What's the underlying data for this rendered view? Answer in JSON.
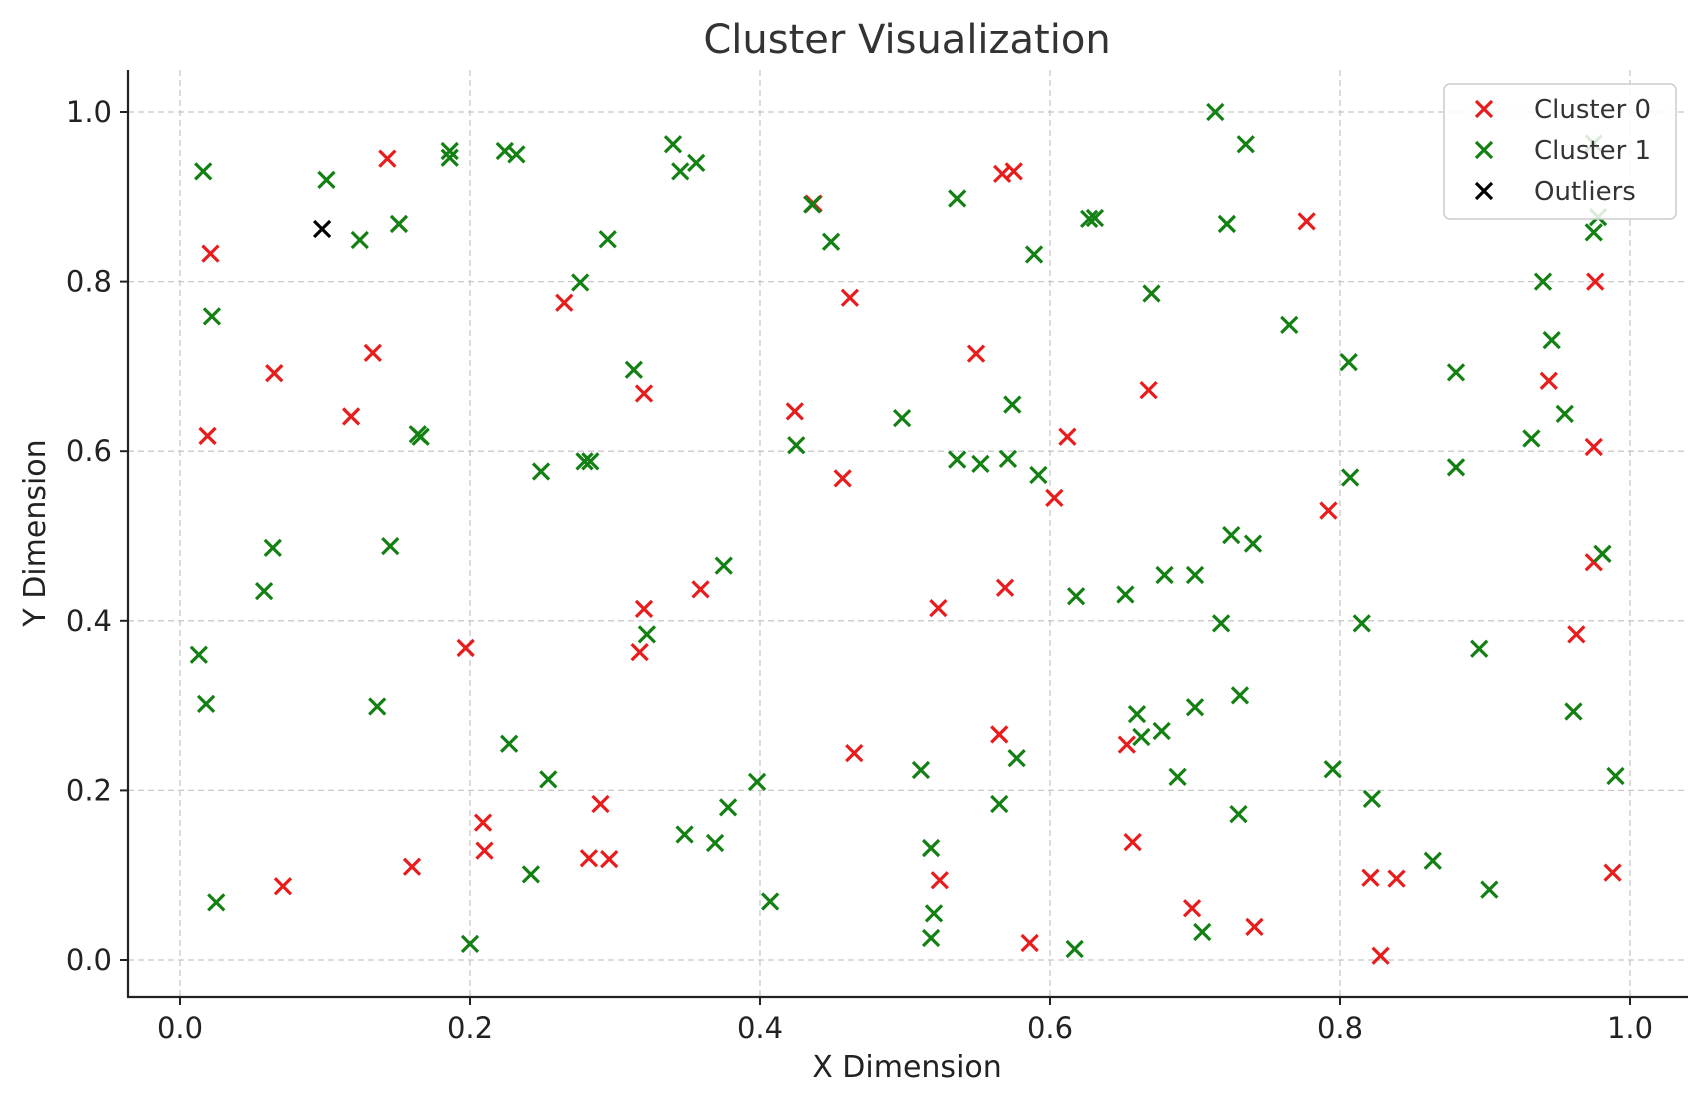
{
  "chart_data": {
    "type": "scatter",
    "title": "Cluster Visualization",
    "xlabel": "X Dimension",
    "ylabel": "Y Dimension",
    "xlim": [
      -0.035,
      1.035
    ],
    "ylim": [
      -0.045,
      1.05
    ],
    "xticks": [
      "0.0",
      "0.2",
      "0.4",
      "0.6",
      "0.8",
      "1.0"
    ],
    "yticks": [
      "0.0",
      "0.2",
      "0.4",
      "0.6",
      "0.8",
      "1.0"
    ],
    "grid": true,
    "legend_position": "top-right",
    "marker": "x",
    "series": [
      {
        "name": "Cluster 0",
        "color": "#e81c1c",
        "points": [
          [
            0.143,
            0.945
          ],
          [
            0.021,
            0.833
          ],
          [
            0.065,
            0.692
          ],
          [
            0.133,
            0.716
          ],
          [
            0.118,
            0.641
          ],
          [
            0.019,
            0.618
          ],
          [
            0.265,
            0.775
          ],
          [
            0.32,
            0.668
          ],
          [
            0.197,
            0.368
          ],
          [
            0.32,
            0.414
          ],
          [
            0.317,
            0.363
          ],
          [
            0.359,
            0.437
          ],
          [
            0.209,
            0.162
          ],
          [
            0.21,
            0.129
          ],
          [
            0.29,
            0.184
          ],
          [
            0.282,
            0.12
          ],
          [
            0.296,
            0.119
          ],
          [
            0.16,
            0.11
          ],
          [
            0.071,
            0.087
          ],
          [
            0.437,
            0.892
          ],
          [
            0.462,
            0.781
          ],
          [
            0.424,
            0.647
          ],
          [
            0.457,
            0.568
          ],
          [
            0.465,
            0.244
          ],
          [
            0.567,
            0.927
          ],
          [
            0.575,
            0.93
          ],
          [
            0.549,
            0.715
          ],
          [
            0.523,
            0.415
          ],
          [
            0.569,
            0.439
          ],
          [
            0.565,
            0.266
          ],
          [
            0.524,
            0.094
          ],
          [
            0.586,
            0.02
          ],
          [
            0.612,
            0.617
          ],
          [
            0.603,
            0.545
          ],
          [
            0.668,
            0.672
          ],
          [
            0.653,
            0.254
          ],
          [
            0.657,
            0.139
          ],
          [
            0.698,
            0.061
          ],
          [
            0.741,
            0.039
          ],
          [
            0.777,
            0.871
          ],
          [
            0.792,
            0.53
          ],
          [
            0.821,
            0.097
          ],
          [
            0.839,
            0.096
          ],
          [
            0.828,
            0.005
          ],
          [
            0.976,
            0.8
          ],
          [
            0.944,
            0.683
          ],
          [
            0.975,
            0.605
          ],
          [
            0.975,
            0.469
          ],
          [
            0.963,
            0.384
          ],
          [
            0.988,
            0.103
          ]
        ]
      },
      {
        "name": "Cluster 1",
        "color": "#128012",
        "points": [
          [
            0.016,
            0.93
          ],
          [
            0.101,
            0.92
          ],
          [
            0.186,
            0.954
          ],
          [
            0.186,
            0.946
          ],
          [
            0.224,
            0.954
          ],
          [
            0.232,
            0.95
          ],
          [
            0.124,
            0.849
          ],
          [
            0.151,
            0.868
          ],
          [
            0.022,
            0.759
          ],
          [
            0.164,
            0.62
          ],
          [
            0.166,
            0.617
          ],
          [
            0.064,
            0.486
          ],
          [
            0.145,
            0.488
          ],
          [
            0.058,
            0.435
          ],
          [
            0.013,
            0.36
          ],
          [
            0.018,
            0.302
          ],
          [
            0.136,
            0.299
          ],
          [
            0.025,
            0.068
          ],
          [
            0.34,
            0.962
          ],
          [
            0.345,
            0.93
          ],
          [
            0.356,
            0.94
          ],
          [
            0.295,
            0.85
          ],
          [
            0.276,
            0.799
          ],
          [
            0.313,
            0.696
          ],
          [
            0.249,
            0.576
          ],
          [
            0.279,
            0.588
          ],
          [
            0.283,
            0.588
          ],
          [
            0.375,
            0.465
          ],
          [
            0.322,
            0.384
          ],
          [
            0.227,
            0.255
          ],
          [
            0.254,
            0.213
          ],
          [
            0.378,
            0.18
          ],
          [
            0.348,
            0.148
          ],
          [
            0.369,
            0.138
          ],
          [
            0.242,
            0.101
          ],
          [
            0.2,
            0.019
          ],
          [
            0.398,
            0.21
          ],
          [
            0.407,
            0.069
          ],
          [
            0.714,
            1.0
          ],
          [
            0.735,
            0.962
          ],
          [
            0.536,
            0.898
          ],
          [
            0.627,
            0.874
          ],
          [
            0.631,
            0.875
          ],
          [
            0.722,
            0.868
          ],
          [
            0.589,
            0.832
          ],
          [
            0.449,
            0.847
          ],
          [
            0.436,
            0.891
          ],
          [
            0.67,
            0.786
          ],
          [
            0.498,
            0.639
          ],
          [
            0.574,
            0.655
          ],
          [
            0.425,
            0.607
          ],
          [
            0.536,
            0.59
          ],
          [
            0.552,
            0.585
          ],
          [
            0.571,
            0.591
          ],
          [
            0.592,
            0.572
          ],
          [
            0.618,
            0.429
          ],
          [
            0.652,
            0.431
          ],
          [
            0.679,
            0.454
          ],
          [
            0.7,
            0.454
          ],
          [
            0.725,
            0.501
          ],
          [
            0.74,
            0.491
          ],
          [
            0.718,
            0.397
          ],
          [
            0.66,
            0.29
          ],
          [
            0.663,
            0.263
          ],
          [
            0.677,
            0.27
          ],
          [
            0.7,
            0.298
          ],
          [
            0.731,
            0.312
          ],
          [
            0.688,
            0.216
          ],
          [
            0.511,
            0.224
          ],
          [
            0.577,
            0.238
          ],
          [
            0.565,
            0.184
          ],
          [
            0.73,
            0.172
          ],
          [
            0.518,
            0.132
          ],
          [
            0.52,
            0.055
          ],
          [
            0.518,
            0.026
          ],
          [
            0.617,
            0.013
          ],
          [
            0.705,
            0.033
          ],
          [
            0.765,
            0.749
          ],
          [
            0.806,
            0.705
          ],
          [
            0.807,
            0.569
          ],
          [
            0.815,
            0.397
          ],
          [
            0.88,
            0.693
          ],
          [
            0.88,
            0.581
          ],
          [
            0.896,
            0.367
          ],
          [
            0.94,
            0.8
          ],
          [
            0.946,
            0.731
          ],
          [
            0.932,
            0.615
          ],
          [
            0.955,
            0.644
          ],
          [
            0.961,
            0.293
          ],
          [
            0.975,
            0.858
          ],
          [
            0.978,
            0.876
          ],
          [
            0.975,
            0.963
          ],
          [
            0.981,
            0.479
          ],
          [
            0.99,
            0.217
          ],
          [
            0.795,
            0.225
          ],
          [
            0.822,
            0.19
          ],
          [
            0.864,
            0.117
          ],
          [
            0.903,
            0.083
          ]
        ]
      },
      {
        "name": "Outliers",
        "color": "#000000",
        "points": [
          [
            0.098,
            0.862
          ]
        ]
      }
    ]
  }
}
